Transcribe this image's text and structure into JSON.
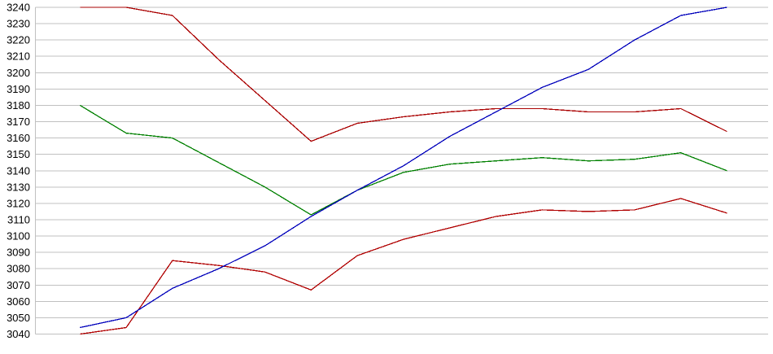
{
  "chart_data": {
    "type": "line",
    "title": "",
    "xlabel": "",
    "ylabel": "",
    "legend": "none",
    "grid": "horizontal",
    "x_tick_labels_visible": false,
    "num_points": 15,
    "ylim": [
      3040,
      3240
    ],
    "ytick_step": 10,
    "yticks": [
      3240,
      3230,
      3220,
      3210,
      3200,
      3190,
      3180,
      3170,
      3160,
      3150,
      3140,
      3130,
      3120,
      3110,
      3100,
      3090,
      3080,
      3070,
      3060,
      3050,
      3040
    ],
    "background_color": "#FFFFFF",
    "gridline_color": "#C0C0C0",
    "axis_line_color": "#C0C0C0",
    "tick_label_color": "#000000",
    "series": [
      {
        "name": "upper-dark-red-line",
        "color": "#AA0000",
        "values": [
          3240,
          3240,
          3235,
          3208,
          3183,
          3158,
          3169,
          3173,
          3176,
          3178,
          3178,
          3176,
          3176,
          3178,
          3164
        ]
      },
      {
        "name": "green-line",
        "color": "#008000",
        "values": [
          3180,
          3163,
          3160,
          3145,
          3130,
          3113,
          3128,
          3139,
          3144,
          3146,
          3148,
          3146,
          3147,
          3151,
          3140
        ]
      },
      {
        "name": "lower-red-line",
        "color": "#B00000",
        "values": [
          3040,
          3044,
          3085,
          3082,
          3078,
          3067,
          3088,
          3098,
          3105,
          3112,
          3116,
          3115,
          3116,
          3123,
          3114
        ]
      },
      {
        "name": "blue-line",
        "color": "#0000BB",
        "values": [
          3044,
          3050,
          3068,
          3080,
          3094,
          3112,
          3128,
          3143,
          3161,
          3176,
          3191,
          3202,
          3220,
          3235,
          3240
        ]
      }
    ]
  }
}
